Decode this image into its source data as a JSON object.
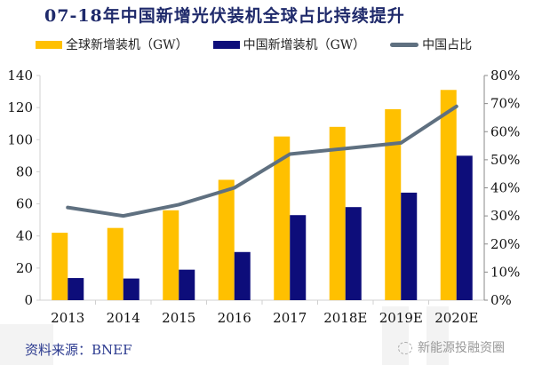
{
  "title": "07-18年中国新增光伏装机全球占比持续提升",
  "footer": {
    "source": "资料来源：BNEF",
    "brand": "新能源投融资圈",
    "brand_icon": "wechat-icon"
  },
  "colors": {
    "global": "#FFC000",
    "china": "#0D0D7A",
    "share": "#5F7080",
    "title": "#1F2A6B"
  },
  "chart_data": {
    "type": "bar",
    "title": "07-18年中国新增光伏装机全球占比持续提升",
    "categories": [
      "2013",
      "2014",
      "2015",
      "2016",
      "2017",
      "2018E",
      "2019E",
      "2020E"
    ],
    "series": [
      {
        "name": "全球新增装机（GW）",
        "type": "bar",
        "axis": "left",
        "values": [
          42,
          45,
          56,
          75,
          102,
          108,
          119,
          131
        ]
      },
      {
        "name": "中国新增装机（GW）",
        "type": "bar",
        "axis": "left",
        "values": [
          13.8,
          13.5,
          19,
          30,
          53,
          58,
          67,
          90
        ]
      },
      {
        "name": "中国占比",
        "type": "line",
        "axis": "right",
        "values": [
          0.33,
          0.3,
          0.34,
          0.4,
          0.52,
          0.54,
          0.56,
          0.69
        ]
      }
    ],
    "left_axis": {
      "ylim": [
        0,
        140
      ],
      "ticks": [
        0,
        20,
        40,
        60,
        80,
        100,
        120,
        140
      ],
      "tick_labels": [
        "0",
        "20",
        "40",
        "60",
        "80",
        "100",
        "120",
        "140"
      ]
    },
    "right_axis": {
      "ylim": [
        0,
        0.8
      ],
      "ticks": [
        0,
        0.1,
        0.2,
        0.3,
        0.4,
        0.5,
        0.6,
        0.7,
        0.8
      ],
      "tick_labels": [
        "0%",
        "10%",
        "20%",
        "30%",
        "40%",
        "50%",
        "60%",
        "70%",
        "80%"
      ]
    },
    "xlabel": "",
    "ylabel": "",
    "grid": false,
    "legend_position": "top"
  }
}
